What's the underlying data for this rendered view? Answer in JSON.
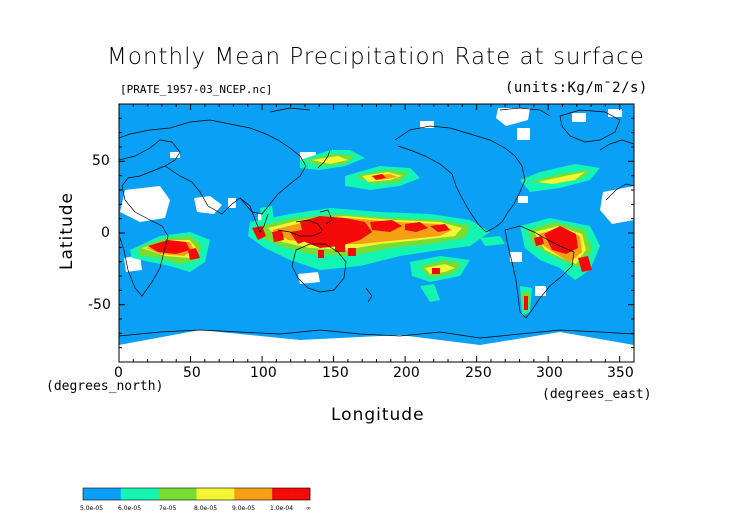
{
  "title": "Monthly Mean Precipitation Rate at surface",
  "file_label": "[PRATE_1957-03_NCEP.nc]",
  "units_label": "(units:Kg/m¯2/s)",
  "x_axis": {
    "title": "Longitude",
    "unit_note": "(degrees_east)",
    "ticks": [
      "0",
      "50",
      "100",
      "150",
      "200",
      "250",
      "300",
      "350"
    ],
    "range": [
      0,
      360
    ]
  },
  "y_axis": {
    "title": "Latitude",
    "unit_note": "(degrees_north)",
    "ticks": [
      "50",
      "0",
      "-50"
    ],
    "range": [
      -90,
      90
    ]
  },
  "colorbar": {
    "colors": [
      "#0aa0f5",
      "#0aa0f5",
      "#14f5b4",
      "#14f5b4",
      "#78dc32",
      "#78dc32",
      "#f5f532",
      "#f5f532",
      "#f5a014",
      "#f5a014",
      "#f50a0a",
      "#f50a0a"
    ],
    "labels": [
      "5.0e-05",
      "6.0e-05",
      "7e-05",
      "8.0e-05",
      "9.0e-05",
      "1.0e-04",
      "∞"
    ]
  },
  "map_colors": {
    "ocean": "#0aa0f5",
    "missing": "#ffffff",
    "low": "#14f5b4",
    "mid": "#78dc32",
    "high": "#f5f532",
    "very_high": "#f5a014",
    "max": "#f50a0a",
    "coast": "#000000"
  }
}
